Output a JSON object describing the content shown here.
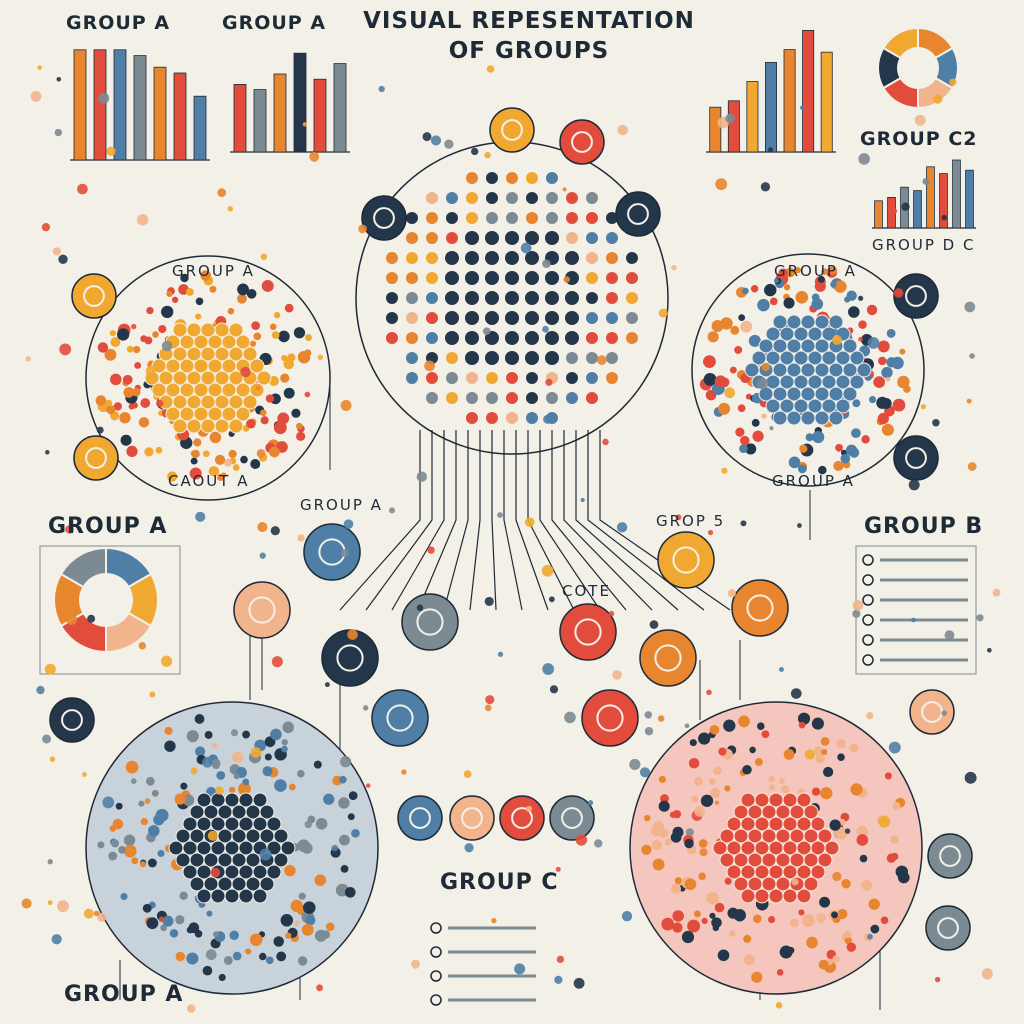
{
  "title": {
    "line1": "VISUAL REPESENTATION",
    "line2": "OF GROUPS"
  },
  "labels": [
    {
      "id": "top-left-1",
      "text": "GROUP A"
    },
    {
      "id": "top-left-2",
      "text": "GROUP A"
    },
    {
      "id": "top-right-small",
      "text": "GROUP C2"
    },
    {
      "id": "top-right-sub",
      "text": "GROUP D C"
    },
    {
      "id": "cluster-left-top",
      "text": "GROUP A"
    },
    {
      "id": "cluster-left-bottom",
      "text": "CAOUT A"
    },
    {
      "id": "cluster-right-top",
      "text": "GROUP A"
    },
    {
      "id": "cluster-right-bottom",
      "text": "GROUP A"
    },
    {
      "id": "mid-left",
      "text": "GROUP A"
    },
    {
      "id": "mid-center-left",
      "text": "GROUP A"
    },
    {
      "id": "mid-center-right",
      "text": "GROP 5"
    },
    {
      "id": "mid-right",
      "text": "GROUP B"
    },
    {
      "id": "core",
      "text": "COTE"
    },
    {
      "id": "bottom-left",
      "text": "GROUP A"
    },
    {
      "id": "bottom-center",
      "text": "GROUP C"
    }
  ],
  "colors": {
    "background": "#f3f0e8",
    "ink": "#1e2a36",
    "orange": "#e8862f",
    "yellow": "#f0a830",
    "red": "#e24c3c",
    "blue": "#4f7fa6",
    "navy": "#24364a",
    "grey": "#7c8a94",
    "peach": "#f2b48c",
    "pink_fill": "#f5c6bd",
    "blue_fill": "#c8d2da"
  },
  "icons": [
    "circle-node-icon",
    "ring-icon",
    "pie-icon",
    "list-bullet-icon"
  ]
}
